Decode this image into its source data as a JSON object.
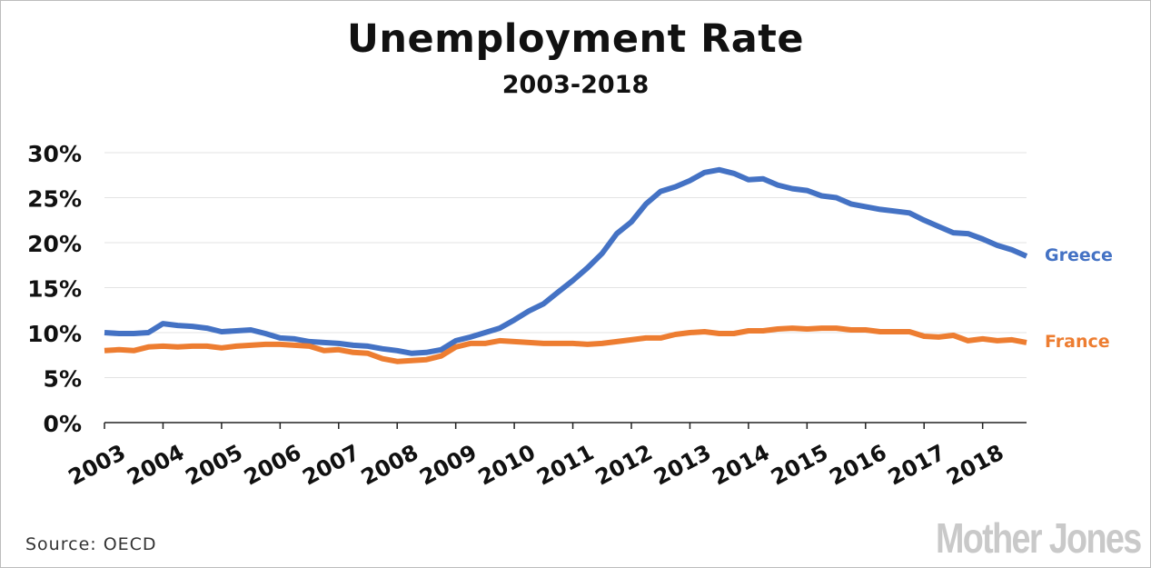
{
  "chart_data": {
    "type": "line",
    "title": "Unemployment Rate",
    "subtitle": "2003-2018",
    "xlabel": "",
    "ylabel": "",
    "x_ticks": [
      "2003",
      "2004",
      "2005",
      "2006",
      "2007",
      "2008",
      "2009",
      "2010",
      "2011",
      "2012",
      "2013",
      "2014",
      "2015",
      "2016",
      "2017",
      "2018"
    ],
    "y_ticks": [
      "0%",
      "5%",
      "10%",
      "15%",
      "20%",
      "25%",
      "30%"
    ],
    "ylim": [
      0,
      30
    ],
    "xlim": [
      2003.0,
      2018.75
    ],
    "grid": "horizontal",
    "legend": "labels at line ends",
    "x": [
      2003.0,
      2003.25,
      2003.5,
      2003.75,
      2004.0,
      2004.25,
      2004.5,
      2004.75,
      2005.0,
      2005.25,
      2005.5,
      2005.75,
      2006.0,
      2006.25,
      2006.5,
      2006.75,
      2007.0,
      2007.25,
      2007.5,
      2007.75,
      2008.0,
      2008.25,
      2008.5,
      2008.75,
      2009.0,
      2009.25,
      2009.5,
      2009.75,
      2010.0,
      2010.25,
      2010.5,
      2010.75,
      2011.0,
      2011.25,
      2011.5,
      2011.75,
      2012.0,
      2012.25,
      2012.5,
      2012.75,
      2013.0,
      2013.25,
      2013.5,
      2013.75,
      2014.0,
      2014.25,
      2014.5,
      2014.75,
      2015.0,
      2015.25,
      2015.5,
      2015.75,
      2016.0,
      2016.25,
      2016.5,
      2016.75,
      2017.0,
      2017.25,
      2017.5,
      2017.75,
      2018.0,
      2018.25,
      2018.5,
      2018.75
    ],
    "series": [
      {
        "name": "Greece",
        "color": "#4472c4",
        "values": [
          10.0,
          9.9,
          9.9,
          10.0,
          11.0,
          10.8,
          10.7,
          10.5,
          10.1,
          10.2,
          10.3,
          9.9,
          9.4,
          9.3,
          9.0,
          8.9,
          8.8,
          8.6,
          8.5,
          8.2,
          8.0,
          7.7,
          7.8,
          8.1,
          9.1,
          9.5,
          10.0,
          10.5,
          11.4,
          12.4,
          13.2,
          14.5,
          15.8,
          17.2,
          18.8,
          21.0,
          22.3,
          24.3,
          25.7,
          26.2,
          26.9,
          27.8,
          28.1,
          27.7,
          27.0,
          27.1,
          26.4,
          26.0,
          25.8,
          25.2,
          25.0,
          24.3,
          24.0,
          23.7,
          23.5,
          23.3,
          22.5,
          21.8,
          21.1,
          21.0,
          20.4,
          19.7,
          19.2,
          18.5
        ]
      },
      {
        "name": "France",
        "color": "#ed7d31",
        "values": [
          8.0,
          8.1,
          8.0,
          8.4,
          8.5,
          8.4,
          8.5,
          8.5,
          8.3,
          8.5,
          8.6,
          8.7,
          8.7,
          8.6,
          8.5,
          8.0,
          8.1,
          7.8,
          7.7,
          7.1,
          6.8,
          6.9,
          7.0,
          7.4,
          8.4,
          8.8,
          8.8,
          9.1,
          9.0,
          8.9,
          8.8,
          8.8,
          8.8,
          8.7,
          8.8,
          9.0,
          9.2,
          9.4,
          9.4,
          9.8,
          10.0,
          10.1,
          9.9,
          9.9,
          10.2,
          10.2,
          10.4,
          10.5,
          10.4,
          10.5,
          10.5,
          10.3,
          10.3,
          10.1,
          10.1,
          10.1,
          9.6,
          9.5,
          9.7,
          9.1,
          9.3,
          9.1,
          9.2,
          8.9
        ]
      }
    ]
  },
  "footer": {
    "source": "Source: OECD",
    "logo": "Mother Jones"
  }
}
